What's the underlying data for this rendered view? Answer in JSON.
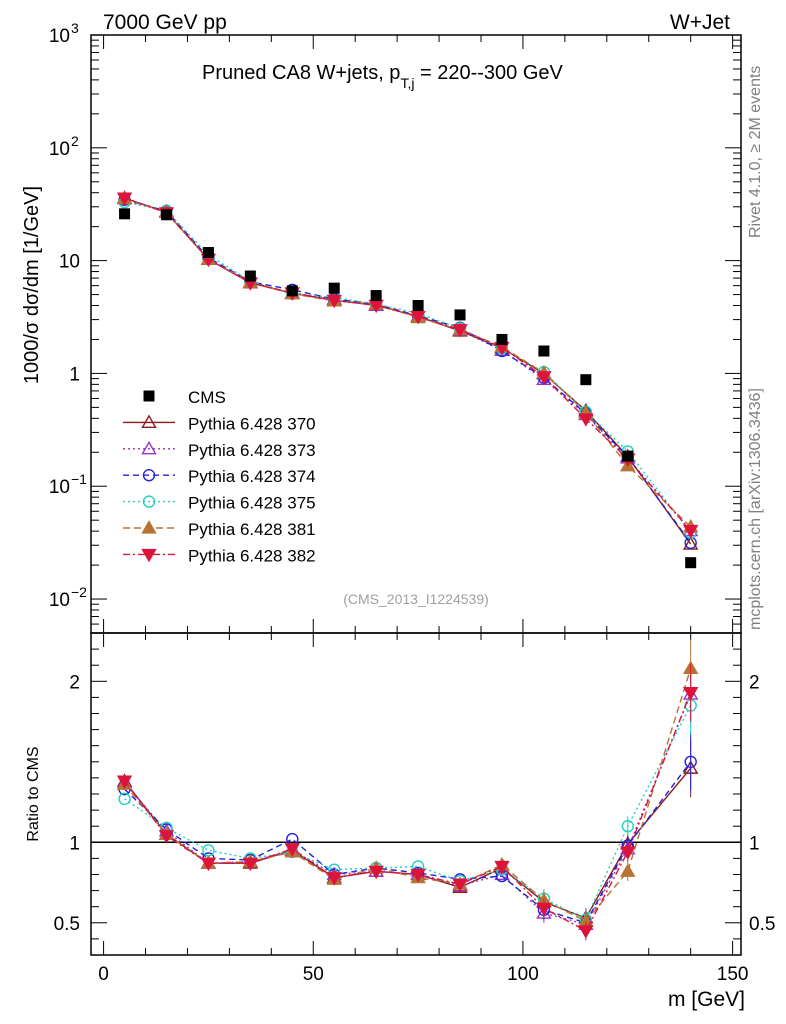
{
  "header": {
    "left": "7000 GeV pp",
    "right": "W+Jet"
  },
  "side": {
    "rivet": "Rivet 4.1.0, ≥ 2M events",
    "mcplots": "mcplots.cern.ch [arXiv:1306.3436]"
  },
  "chart_data": {
    "type": "line",
    "title": "Pruned CA8 W+jets, p_T,j = 220--300 GeV",
    "title_main": "Pruned CA8 W+jets, p",
    "title_sub": "T,j",
    "title_tail": " = 220--300 GeV",
    "analysis_id": "(CMS_2013_I1224539)",
    "xlabel": "m [GeV]",
    "ylabel": "1000/σ  dσ/dm [1/GeV]",
    "ratio_ylabel": "Ratio to CMS",
    "xlim": [
      -3,
      152
    ],
    "ylim": [
      0.005,
      1000
    ],
    "ratio_ylim": [
      0.3,
      2.3
    ],
    "x_ticks": [
      "0",
      "50",
      "100",
      "150"
    ],
    "y_ticks": [
      "10",
      "1",
      "10"
    ],
    "ratio_ticks": [
      "0.5",
      "1",
      "2"
    ],
    "x": [
      5,
      15,
      25,
      35,
      45,
      55,
      65,
      75,
      85,
      95,
      105,
      115,
      125,
      140
    ],
    "data": {
      "name": "CMS",
      "values": [
        26.0,
        25.5,
        11.8,
        7.3,
        5.4,
        5.7,
        4.9,
        4.0,
        3.3,
        2.0,
        1.58,
        0.88,
        0.185,
        0.021
      ]
    },
    "series": [
      {
        "name": "Pythia 6.428 370",
        "color": "#8b1a1a",
        "marker": "triangle-up-open",
        "dash": "",
        "ratio": [
          1.38,
          1.05,
          0.87,
          0.87,
          0.95,
          0.78,
          0.82,
          0.8,
          0.72,
          0.84,
          0.63,
          0.53,
          0.99,
          1.46
        ]
      },
      {
        "name": "Pythia 6.428 373",
        "color": "#9932cc",
        "marker": "triangle-up-open",
        "dash": "2,3",
        "ratio": [
          1.37,
          1.07,
          0.87,
          0.88,
          0.95,
          0.8,
          0.82,
          0.8,
          0.73,
          0.8,
          0.56,
          0.49,
          0.96,
          1.92
        ]
      },
      {
        "name": "Pythia 6.428 374",
        "color": "#2323d9",
        "marker": "circle-open",
        "dash": "6,4",
        "ratio": [
          1.33,
          1.08,
          0.9,
          0.89,
          1.02,
          0.8,
          0.84,
          0.81,
          0.77,
          0.79,
          0.58,
          0.5,
          0.98,
          1.5
        ]
      },
      {
        "name": "Pythia 6.428 375",
        "color": "#20d0c0",
        "marker": "circle-open",
        "dash": "2,3",
        "ratio": [
          1.27,
          1.09,
          0.95,
          0.9,
          0.94,
          0.83,
          0.84,
          0.85,
          0.76,
          0.83,
          0.65,
          0.52,
          1.1,
          1.85
        ]
      },
      {
        "name": "Pythia 6.428 381",
        "color": "#b87333",
        "marker": "triangle-up",
        "dash": "7,4",
        "ratio": [
          1.36,
          1.05,
          0.87,
          0.88,
          0.94,
          0.77,
          0.84,
          0.78,
          0.74,
          0.86,
          0.64,
          0.51,
          0.82,
          2.08
        ]
      },
      {
        "name": "Pythia 6.428 382",
        "color": "#dc143c",
        "marker": "triangle-down",
        "dash": "7,3,2,3",
        "ratio": [
          1.38,
          1.04,
          0.87,
          0.87,
          0.96,
          0.78,
          0.82,
          0.8,
          0.74,
          0.85,
          0.59,
          0.45,
          0.94,
          1.93
        ]
      }
    ]
  }
}
